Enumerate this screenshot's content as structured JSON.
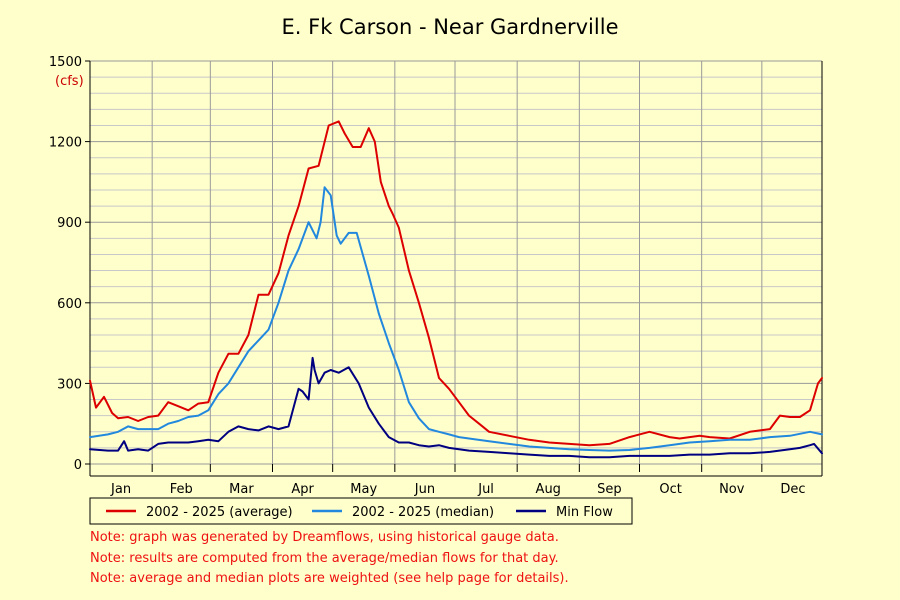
{
  "chart_data": {
    "type": "line",
    "title": "E. Fk Carson - Near Gardnerville",
    "ylabel": "(cfs)",
    "ylim": [
      0,
      1500
    ],
    "yticks": [
      "0",
      "300",
      "600",
      "900",
      "1200",
      "1500"
    ],
    "ytick_values": [
      0,
      300,
      600,
      900,
      1200,
      1500
    ],
    "x_unit": "day of year",
    "xlim": [
      1,
      366
    ],
    "categories": [
      "Jan",
      "Feb",
      "Mar",
      "Apr",
      "May",
      "Jun",
      "Jul",
      "Aug",
      "Sep",
      "Oct",
      "Nov",
      "Dec"
    ],
    "grid": true,
    "legend_position": "bottom",
    "series": [
      {
        "name": "2002 - 2025 (average)",
        "color": "#dd0000",
        "x": [
          1,
          4,
          8,
          12,
          15,
          20,
          25,
          30,
          35,
          40,
          45,
          50,
          55,
          60,
          65,
          70,
          75,
          80,
          85,
          90,
          95,
          100,
          105,
          110,
          115,
          120,
          125,
          128,
          132,
          136,
          140,
          143,
          146,
          150,
          152,
          155,
          160,
          165,
          170,
          175,
          180,
          185,
          190,
          195,
          200,
          210,
          220,
          230,
          240,
          250,
          260,
          270,
          280,
          290,
          295,
          300,
          305,
          310,
          320,
          330,
          340,
          345,
          350,
          355,
          360,
          364,
          366
        ],
        "values": [
          310,
          210,
          250,
          190,
          170,
          175,
          160,
          175,
          180,
          230,
          215,
          200,
          225,
          230,
          340,
          410,
          410,
          480,
          630,
          630,
          710,
          850,
          960,
          1100,
          1110,
          1260,
          1275,
          1230,
          1180,
          1180,
          1250,
          1200,
          1050,
          960,
          930,
          880,
          720,
          600,
          470,
          320,
          280,
          230,
          180,
          150,
          120,
          105,
          90,
          80,
          75,
          70,
          75,
          100,
          120,
          100,
          95,
          100,
          105,
          100,
          95,
          120,
          130,
          180,
          175,
          175,
          200,
          300,
          320
        ]
      },
      {
        "name": "2002 - 2025 (median)",
        "color": "#2288dd",
        "x": [
          1,
          10,
          15,
          20,
          25,
          35,
          40,
          45,
          50,
          55,
          60,
          65,
          70,
          75,
          80,
          85,
          90,
          95,
          100,
          105,
          110,
          114,
          116,
          118,
          121,
          124,
          126,
          130,
          134,
          140,
          145,
          150,
          155,
          160,
          165,
          170,
          175,
          180,
          185,
          190,
          200,
          210,
          220,
          230,
          240,
          250,
          260,
          270,
          280,
          290,
          300,
          310,
          320,
          330,
          335,
          340,
          350,
          360,
          366
        ],
        "values": [
          100,
          110,
          120,
          140,
          130,
          130,
          150,
          160,
          175,
          180,
          200,
          260,
          300,
          360,
          420,
          460,
          500,
          600,
          720,
          800,
          900,
          840,
          900,
          1030,
          1000,
          850,
          820,
          860,
          860,
          700,
          560,
          450,
          350,
          230,
          170,
          130,
          120,
          110,
          100,
          95,
          85,
          75,
          65,
          60,
          55,
          52,
          50,
          52,
          60,
          70,
          80,
          85,
          90,
          90,
          95,
          100,
          105,
          120,
          110
        ]
      },
      {
        "name": "Min Flow",
        "color": "#000080",
        "x": [
          1,
          10,
          15,
          18,
          20,
          25,
          30,
          35,
          40,
          45,
          50,
          55,
          60,
          65,
          70,
          75,
          80,
          85,
          90,
          95,
          100,
          105,
          107,
          110,
          112,
          113,
          115,
          118,
          121,
          125,
          130,
          135,
          140,
          145,
          150,
          155,
          160,
          165,
          170,
          175,
          180,
          190,
          200,
          210,
          220,
          230,
          240,
          250,
          260,
          270,
          280,
          290,
          300,
          310,
          320,
          330,
          340,
          350,
          355,
          360,
          362,
          366
        ],
        "values": [
          55,
          50,
          50,
          85,
          50,
          55,
          50,
          75,
          80,
          80,
          80,
          85,
          90,
          85,
          120,
          140,
          130,
          125,
          140,
          130,
          140,
          280,
          270,
          240,
          395,
          350,
          300,
          340,
          350,
          340,
          360,
          300,
          210,
          150,
          100,
          80,
          80,
          70,
          65,
          70,
          60,
          50,
          45,
          40,
          35,
          30,
          30,
          25,
          25,
          30,
          30,
          30,
          35,
          35,
          40,
          40,
          45,
          55,
          60,
          70,
          75,
          40
        ]
      }
    ]
  },
  "notes": [
    "Note: graph was generated by Dreamflows, using historical gauge data.",
    "Note: results are computed from the average/median flows for that day.",
    "Note: average and median plots are weighted (see help page for details)."
  ]
}
